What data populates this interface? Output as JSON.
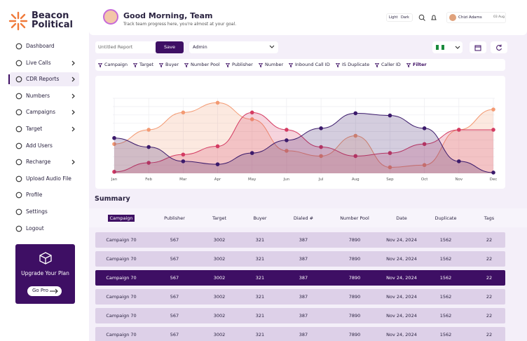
{
  "brand": {
    "line1": "Beacon",
    "line2": "Political"
  },
  "nav": [
    {
      "label": "Dashboard",
      "arrow": false
    },
    {
      "label": "Live Calls",
      "arrow": true
    },
    {
      "label": "CDR Reports",
      "arrow": true,
      "active": true
    },
    {
      "label": "Numbers",
      "arrow": true
    },
    {
      "label": "Campaigns",
      "arrow": true
    },
    {
      "label": "Target",
      "arrow": true
    },
    {
      "label": "Add Users",
      "arrow": false
    },
    {
      "label": "Recharge",
      "arrow": true
    },
    {
      "label": "Upload Audio File",
      "arrow": false
    },
    {
      "label": "Profile",
      "arrow": false
    },
    {
      "label": "Settings",
      "arrow": false
    },
    {
      "label": "Logout",
      "arrow": false
    }
  ],
  "upgrade": {
    "title": "Upgrade Your Plan",
    "button": "Go Pro"
  },
  "header": {
    "greeting": "Good Morning, Team",
    "subtitle": "Track team progress here, you're almost at your goal.",
    "theme": [
      "Light",
      "Dark"
    ],
    "user": "Chizi Adams",
    "date": "03 Aug"
  },
  "controls": {
    "report": "Untitled Report",
    "save": "Save",
    "select": "Admin"
  },
  "filters": {
    "items": [
      "Campaign",
      "Target",
      "Buyer",
      "Number Pool",
      "Publisher",
      "Number",
      "Inbound Call ID",
      "IS Duplicate",
      "Caller ID"
    ],
    "button": "Filter"
  },
  "chart": {
    "type": "area",
    "categories": [
      "Jan",
      "Feb",
      "Mar",
      "Apr",
      "May",
      "Jun",
      "Jul",
      "Aug",
      "Sep",
      "Oct",
      "Nov",
      "Dec"
    ],
    "ylim": [
      0,
      100
    ],
    "series": [
      {
        "color": "#f39a73",
        "values": [
          39,
          58,
          81,
          94,
          72,
          30,
          23,
          50,
          8,
          11,
          58,
          85
        ]
      },
      {
        "color": "#d43b62",
        "values": [
          2,
          14,
          25,
          36,
          81,
          58,
          35,
          23,
          27,
          39,
          58,
          58
        ]
      },
      {
        "color": "#3b1a6b",
        "values": [
          47,
          35,
          16,
          12,
          27,
          44,
          60,
          80,
          77,
          60,
          16,
          1
        ]
      }
    ]
  },
  "summary": {
    "title": "Summary",
    "columns": [
      "Campaign",
      "Publisher",
      "Target",
      "Buyer",
      "Dialed #",
      "Number Pool",
      "Date",
      "Duplicate",
      "Tags"
    ],
    "highlight_row": 2,
    "rows": [
      [
        "Campaign 70",
        567,
        3002,
        321,
        387,
        7890,
        "Nov 24, 2024",
        1562,
        22
      ],
      [
        "Campaign 70",
        567,
        3002,
        321,
        387,
        7890,
        "Nov 24, 2024",
        1562,
        22
      ],
      [
        "Campaign 70",
        567,
        3002,
        321,
        387,
        7890,
        "Nov 24, 2024",
        1562,
        22
      ],
      [
        "Campaign 70",
        567,
        3002,
        321,
        387,
        7890,
        "Nov 24, 2024",
        1562,
        22
      ],
      [
        "Campaign 70",
        567,
        3002,
        321,
        387,
        7890,
        "Nov 24, 2024",
        1562,
        22
      ],
      [
        "Campaign 70",
        567,
        3002,
        321,
        387,
        7890,
        "Nov 24, 2024",
        1562,
        22
      ]
    ]
  }
}
